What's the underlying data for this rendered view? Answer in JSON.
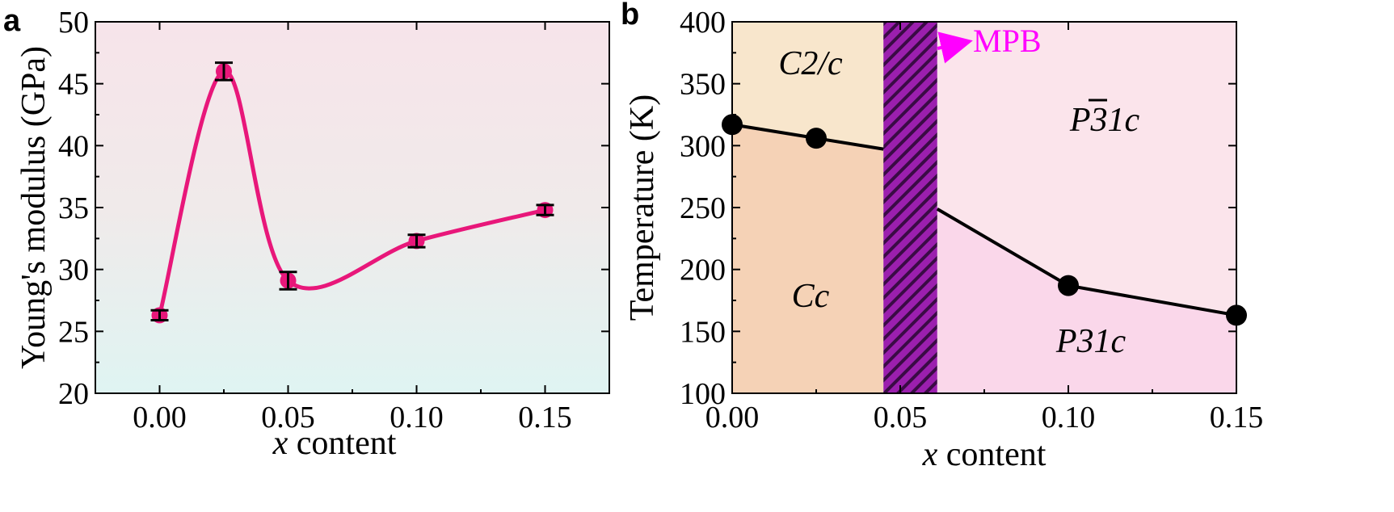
{
  "chart_data": [
    {
      "type": "line",
      "panel_label": "a",
      "xlabel_var": "x",
      "xlabel_rest": " content",
      "ylabel": "Young's modulus (GPa)",
      "xlim": [
        -0.025,
        0.175
      ],
      "ylim": [
        20,
        50
      ],
      "xticks": [
        0.0,
        0.05,
        0.1,
        0.15
      ],
      "xtick_labels": [
        "0.00",
        "0.05",
        "0.10",
        "0.15"
      ],
      "yticks": [
        20,
        25,
        30,
        35,
        40,
        45,
        50
      ],
      "ytick_labels": [
        "20",
        "25",
        "30",
        "35",
        "40",
        "45",
        "50"
      ],
      "grid": false,
      "background": "gradient pink (top) to light cyan (bottom)",
      "series": [
        {
          "x": [
            0.0,
            0.025,
            0.05,
            0.1,
            0.15
          ],
          "y": [
            26.3,
            46.0,
            29.1,
            32.3,
            34.8
          ],
          "err": [
            0.4,
            0.7,
            0.7,
            0.5,
            0.4
          ],
          "color": "#e8177a",
          "smooth": true
        }
      ]
    },
    {
      "type": "line",
      "panel_label": "b",
      "xlabel_var": "x",
      "xlabel_rest": " content",
      "ylabel": "Temperature (K)",
      "xlim": [
        0.0,
        0.15
      ],
      "ylim": [
        100,
        400
      ],
      "xticks": [
        0.0,
        0.05,
        0.1,
        0.15
      ],
      "xtick_labels": [
        "0.00",
        "0.05",
        "0.10",
        "0.15"
      ],
      "yticks": [
        100,
        150,
        200,
        250,
        300,
        350,
        400
      ],
      "ytick_labels": [
        "100",
        "150",
        "200",
        "250",
        "300",
        "350",
        "400"
      ],
      "grid": false,
      "series": [
        {
          "x": [
            0.0,
            0.025,
            0.1,
            0.15
          ],
          "y": [
            317,
            306,
            187,
            163
          ],
          "color": "#000000"
        }
      ],
      "mpb_range": [
        0.045,
        0.061
      ],
      "mpb_label": "MPB",
      "regions": [
        {
          "label": "C2/c",
          "color": "#f8e6cc"
        },
        {
          "label": "Cc",
          "color": "#f5d2b6"
        },
        {
          "label": "P31c",
          "color": "#fbe4eb"
        },
        {
          "label": "P31c",
          "color": "#fad7ea"
        }
      ],
      "colors": {
        "mpb": "#8b1a9c",
        "mpb_label": "#ff00ff"
      }
    }
  ]
}
